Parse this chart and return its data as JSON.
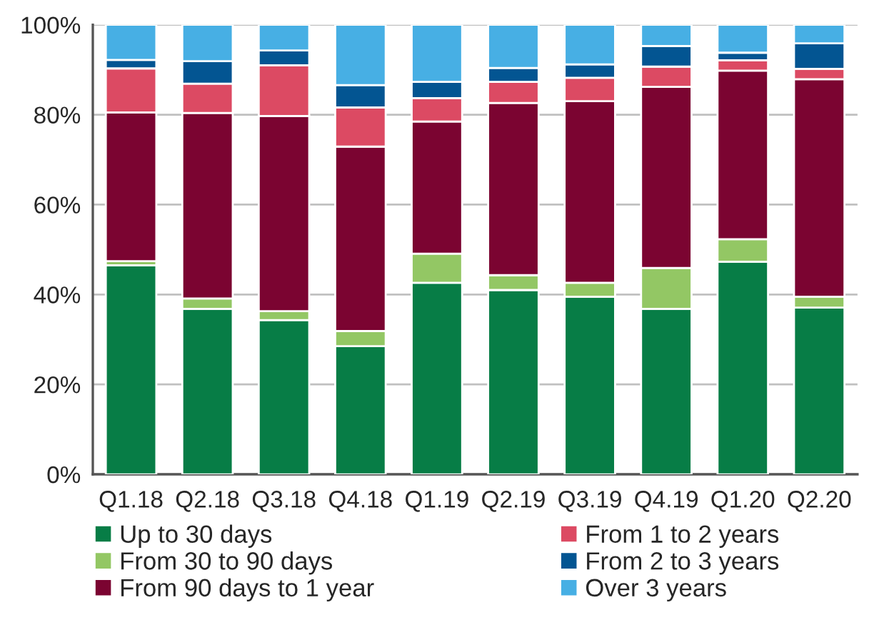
{
  "chart_data": {
    "type": "bar",
    "stacked": true,
    "categories": [
      "Q1.18",
      "Q2.18",
      "Q3.18",
      "Q4.18",
      "Q1.19",
      "Q2.19",
      "Q3.19",
      "Q4.19",
      "Q1.20",
      "Q2.20"
    ],
    "series": [
      {
        "name": "Up to 30 days",
        "color": "#077d46",
        "values": [
          46.5,
          36.8,
          34.3,
          28.5,
          42.6,
          41.0,
          39.5,
          36.8,
          47.3,
          37.1
        ]
      },
      {
        "name": "From 30 to 90 days",
        "color": "#93c764",
        "values": [
          0.9,
          2.3,
          2.0,
          3.4,
          6.5,
          3.3,
          3.1,
          9.1,
          5.0,
          2.4
        ]
      },
      {
        "name": "From 90 days to 1 year",
        "color": "#7b0431",
        "values": [
          33.1,
          41.3,
          43.4,
          41.0,
          29.4,
          38.3,
          40.4,
          40.3,
          37.5,
          48.4
        ]
      },
      {
        "name": "From 1 to 2 years",
        "color": "#dc4a63",
        "values": [
          9.8,
          6.5,
          11.3,
          8.7,
          5.2,
          4.7,
          5.2,
          4.5,
          2.3,
          2.3
        ]
      },
      {
        "name": "From 2 to 3 years",
        "color": "#035592",
        "values": [
          1.9,
          5.0,
          3.3,
          5.0,
          3.6,
          3.1,
          3.0,
          4.6,
          1.7,
          5.7
        ]
      },
      {
        "name": "Over 3 years",
        "color": "#47afe4",
        "values": [
          7.8,
          8.1,
          5.7,
          13.4,
          12.7,
          9.6,
          8.8,
          4.7,
          6.2,
          4.1
        ]
      }
    ],
    "ylim": [
      0,
      100
    ],
    "yticks": [
      {
        "value": 0,
        "label": "0%"
      },
      {
        "value": 20,
        "label": "20%"
      },
      {
        "value": 40,
        "label": "40%"
      },
      {
        "value": 60,
        "label": "60%"
      },
      {
        "value": 80,
        "label": "80%"
      },
      {
        "value": 100,
        "label": "100%"
      }
    ],
    "grid": "y",
    "legend": "bottom"
  }
}
